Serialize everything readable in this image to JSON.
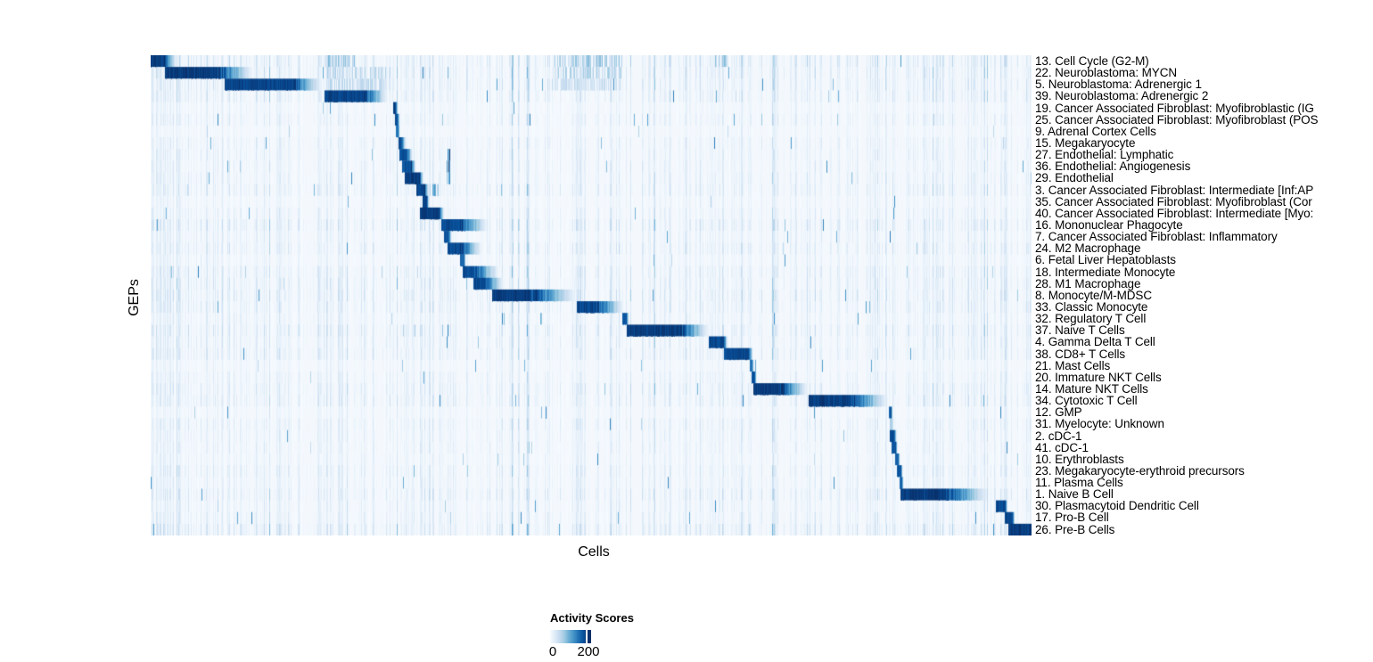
{
  "chart_data": {
    "type": "heatmap",
    "title": "",
    "xlabel": "Cells",
    "ylabel": "GEPs",
    "grid": false,
    "legend_position": "bottom-left",
    "colormap": {
      "name": "Blues",
      "stops": [
        "#F7FBFF",
        "#DEEBF7",
        "#C6DBEF",
        "#9ECAE1",
        "#6BAED6",
        "#4292C6",
        "#2171B5",
        "#08519C",
        "#08306B"
      ],
      "background": "#F4F8FC",
      "darkest": "#08306B"
    },
    "colorbar": {
      "title": "Activity Scores",
      "min": 0,
      "min_label": "0",
      "tick": 200,
      "tick_label": "200",
      "tick_fraction": 0.89
    },
    "x_axis_note": "columns are individual cells ordered by GEP assignment; block positions given as fractions 0-1 of the cell axis",
    "value_note": "block value is relative activity 0-1 (1 = darkest, ~max score)",
    "rows": [
      {
        "label": "13. Cell Cycle (G2-M)",
        "noise": 0.5,
        "block": {
          "start": 0.0,
          "core_end": 0.0142,
          "fade_end": 0.03,
          "value": 1.0
        },
        "extras": [
          {
            "s": 0.198,
            "e": 0.232,
            "v": 0.35
          },
          {
            "s": 0.455,
            "e": 0.535,
            "v": 0.33
          },
          {
            "s": 0.637,
            "e": 0.655,
            "v": 0.35
          }
        ]
      },
      {
        "label": "22. Neuroblastoma: MYCN",
        "noise": 0.45,
        "block": {
          "start": 0.0162,
          "core_end": 0.0749,
          "fade_end": 0.1174,
          "value": 1.0
        },
        "extras": [
          {
            "s": 0.2,
            "e": 0.272,
            "v": 0.25
          },
          {
            "s": 0.455,
            "e": 0.535,
            "v": 0.28
          }
        ]
      },
      {
        "label": "5. Neuroblastoma: Adrenergic 1",
        "noise": 0.42,
        "block": {
          "start": 0.084,
          "core_end": 0.1609,
          "fade_end": 0.195,
          "value": 0.97
        },
        "extras": [
          {
            "s": 0.2,
            "e": 0.272,
            "v": 0.25
          },
          {
            "s": 0.455,
            "e": 0.535,
            "v": 0.22
          }
        ]
      },
      {
        "label": "39. Neuroblastoma: Adrenergic 2",
        "noise": 0.4,
        "block": {
          "start": 0.1974,
          "core_end": 0.2419,
          "fade_end": 0.27,
          "value": 0.97
        },
        "extras": []
      },
      {
        "label": "19. Cancer Associated Fibroblast: Myofibroblastic (IG",
        "noise": 0.22,
        "block": {
          "start": 0.2753,
          "core_end": 0.2783,
          "fade_end": 0.281,
          "value": 1.0
        },
        "extras": []
      },
      {
        "label": "25. Cancer Associated Fibroblast: Myofibroblast (POS",
        "noise": 0.3,
        "block": {
          "start": 0.2773,
          "core_end": 0.2804,
          "fade_end": 0.283,
          "value": 0.95
        },
        "extras": []
      },
      {
        "label": "9. Adrenal Cortex Cells",
        "noise": 0.18,
        "block": {
          "start": 0.2785,
          "core_end": 0.2814,
          "fade_end": 0.283,
          "value": 0.8
        },
        "extras": []
      },
      {
        "label": "15. Megakaryocyte",
        "noise": 0.3,
        "block": {
          "start": 0.2815,
          "core_end": 0.2845,
          "fade_end": 0.29,
          "value": 0.95
        },
        "extras": []
      },
      {
        "label": "27. Endothelial: Lymphatic",
        "noise": 0.3,
        "block": {
          "start": 0.2827,
          "core_end": 0.2905,
          "fade_end": 0.2975,
          "value": 0.95
        },
        "extras": [
          {
            "s": 0.336,
            "e": 0.34,
            "v": 0.75
          }
        ]
      },
      {
        "label": "36. Endothelial: Angiogenesis",
        "noise": 0.3,
        "block": {
          "start": 0.285,
          "core_end": 0.296,
          "fade_end": 0.301,
          "value": 0.92
        },
        "extras": [
          {
            "s": 0.336,
            "e": 0.34,
            "v": 0.8
          }
        ]
      },
      {
        "label": "29. Endothelial",
        "noise": 0.33,
        "block": {
          "start": 0.288,
          "core_end": 0.305,
          "fade_end": 0.31,
          "value": 1.0
        },
        "extras": [
          {
            "s": 0.336,
            "e": 0.34,
            "v": 0.8
          }
        ]
      },
      {
        "label": "3. Cancer Associated Fibroblast: Intermediate [Inf:AP",
        "noise": 0.38,
        "block": {
          "start": 0.302,
          "core_end": 0.311,
          "fade_end": 0.316,
          "value": 0.97
        },
        "extras": [
          {
            "s": 0.317,
            "e": 0.327,
            "v": 0.5
          }
        ]
      },
      {
        "label": "35. Cancer Associated Fibroblast: Myofibroblast (Cor",
        "noise": 0.22,
        "block": {
          "start": 0.309,
          "core_end": 0.3135,
          "fade_end": 0.316,
          "value": 0.95
        },
        "extras": []
      },
      {
        "label": "40. Cancer Associated Fibroblast: Intermediate [Myo:",
        "noise": 0.3,
        "block": {
          "start": 0.306,
          "core_end": 0.328,
          "fade_end": 0.333,
          "value": 1.0
        },
        "extras": []
      },
      {
        "label": "16. Mononuclear Phagocyte",
        "noise": 0.45,
        "block": {
          "start": 0.33,
          "core_end": 0.351,
          "fade_end": 0.383,
          "value": 0.95
        },
        "extras": []
      },
      {
        "label": "7. Cancer Associated Fibroblast: Inflammatory",
        "noise": 0.3,
        "block": {
          "start": 0.333,
          "core_end": 0.3385,
          "fade_end": 0.342,
          "value": 0.9
        },
        "extras": []
      },
      {
        "label": "24. M2 Macrophage",
        "noise": 0.4,
        "block": {
          "start": 0.337,
          "core_end": 0.3515,
          "fade_end": 0.376,
          "value": 0.95
        },
        "extras": []
      },
      {
        "label": "6. Fetal Liver Hepatoblasts",
        "noise": 0.26,
        "block": {
          "start": 0.3512,
          "core_end": 0.3555,
          "fade_end": 0.358,
          "value": 0.85
        },
        "extras": []
      },
      {
        "label": "18. Intermediate Monocyte",
        "noise": 0.4,
        "block": {
          "start": 0.3545,
          "core_end": 0.3665,
          "fade_end": 0.396,
          "value": 0.95
        },
        "extras": []
      },
      {
        "label": "28. M1 Macrophage",
        "noise": 0.4,
        "block": {
          "start": 0.3665,
          "core_end": 0.3796,
          "fade_end": 0.401,
          "value": 0.95
        },
        "extras": []
      },
      {
        "label": "8. Monocyte/M-MDSC",
        "noise": 0.45,
        "block": {
          "start": 0.3877,
          "core_end": 0.4312,
          "fade_end": 0.484,
          "value": 1.0
        },
        "extras": []
      },
      {
        "label": "33. Classic Monocyte",
        "noise": 0.4,
        "block": {
          "start": 0.4838,
          "core_end": 0.5061,
          "fade_end": 0.538,
          "value": 0.97
        },
        "extras": []
      },
      {
        "label": "32. Regulatory T Cell",
        "noise": 0.3,
        "block": {
          "start": 0.5354,
          "core_end": 0.5405,
          "fade_end": 0.543,
          "value": 0.9
        },
        "extras": []
      },
      {
        "label": "37. Naive T Cells",
        "noise": 0.45,
        "block": {
          "start": 0.5405,
          "core_end": 0.6012,
          "fade_end": 0.634,
          "value": 1.0
        },
        "extras": []
      },
      {
        "label": "4. Gamma Delta T Cell",
        "noise": 0.35,
        "block": {
          "start": 0.6336,
          "core_end": 0.6508,
          "fade_end": 0.655,
          "value": 0.95
        },
        "extras": []
      },
      {
        "label": "38. CD8+ T Cells",
        "noise": 0.4,
        "block": {
          "start": 0.6508,
          "core_end": 0.6791,
          "fade_end": 0.684,
          "value": 0.95
        },
        "extras": []
      },
      {
        "label": "21. Mast Cells",
        "noise": 0.2,
        "block": {
          "start": 0.6802,
          "core_end": 0.6832,
          "fade_end": 0.685,
          "value": 0.75
        },
        "extras": []
      },
      {
        "label": "20. Immature NKT Cells",
        "noise": 0.3,
        "block": {
          "start": 0.6822,
          "core_end": 0.6855,
          "fade_end": 0.688,
          "value": 0.9
        },
        "extras": []
      },
      {
        "label": "14. Mature NKT Cells",
        "noise": 0.4,
        "block": {
          "start": 0.6842,
          "core_end": 0.7146,
          "fade_end": 0.747,
          "value": 1.0
        },
        "extras": []
      },
      {
        "label": "34. Cytotoxic T Cell",
        "noise": 0.4,
        "block": {
          "start": 0.747,
          "core_end": 0.7955,
          "fade_end": 0.838,
          "value": 1.0
        },
        "extras": []
      },
      {
        "label": "12. GMP",
        "noise": 0.2,
        "block": {
          "start": 0.8381,
          "core_end": 0.8405,
          "fade_end": 0.843,
          "value": 0.85
        },
        "extras": []
      },
      {
        "label": "31. Myelocyte: Unknown",
        "noise": 0.33,
        "block": {
          "start": 0.8391,
          "core_end": 0.8415,
          "fade_end": 0.844,
          "value": 0.35
        },
        "extras": []
      },
      {
        "label": "2. cDC-1",
        "noise": 0.28,
        "block": {
          "start": 0.8391,
          "core_end": 0.8445,
          "fade_end": 0.847,
          "value": 0.95
        },
        "extras": []
      },
      {
        "label": "41. cDC-1",
        "noise": 0.28,
        "block": {
          "start": 0.8415,
          "core_end": 0.8455,
          "fade_end": 0.848,
          "value": 0.9
        },
        "extras": []
      },
      {
        "label": "10. Erythroblasts",
        "noise": 0.25,
        "block": {
          "start": 0.8452,
          "core_end": 0.8482,
          "fade_end": 0.851,
          "value": 0.85
        },
        "extras": []
      },
      {
        "label": "23. Megakaryocyte-erythroid precursors",
        "noise": 0.35,
        "block": {
          "start": 0.8472,
          "core_end": 0.8515,
          "fade_end": 0.854,
          "value": 0.9
        },
        "extras": []
      },
      {
        "label": "11. Plasma Cells",
        "noise": 0.3,
        "block": {
          "start": 0.8503,
          "core_end": 0.8528,
          "fade_end": 0.855,
          "value": 0.85
        },
        "extras": []
      },
      {
        "label": "1. Naive B Cell",
        "noise": 0.42,
        "block": {
          "start": 0.8513,
          "core_end": 0.9018,
          "fade_end": 0.953,
          "value": 1.0
        },
        "extras": []
      },
      {
        "label": "30. Plasmacytoid Dendritic Cell",
        "noise": 0.3,
        "block": {
          "start": 0.9595,
          "core_end": 0.9706,
          "fade_end": 0.973,
          "value": 0.95
        },
        "extras": []
      },
      {
        "label": "17. Pro-B Cell",
        "noise": 0.33,
        "block": {
          "start": 0.9696,
          "core_end": 0.9787,
          "fade_end": 0.981,
          "value": 0.95
        },
        "extras": []
      },
      {
        "label": "26. Pre-B Cells",
        "noise": 0.5,
        "block": {
          "start": 0.9737,
          "core_end": 1.0,
          "fade_end": 1.0,
          "value": 1.0
        },
        "extras": []
      }
    ]
  }
}
